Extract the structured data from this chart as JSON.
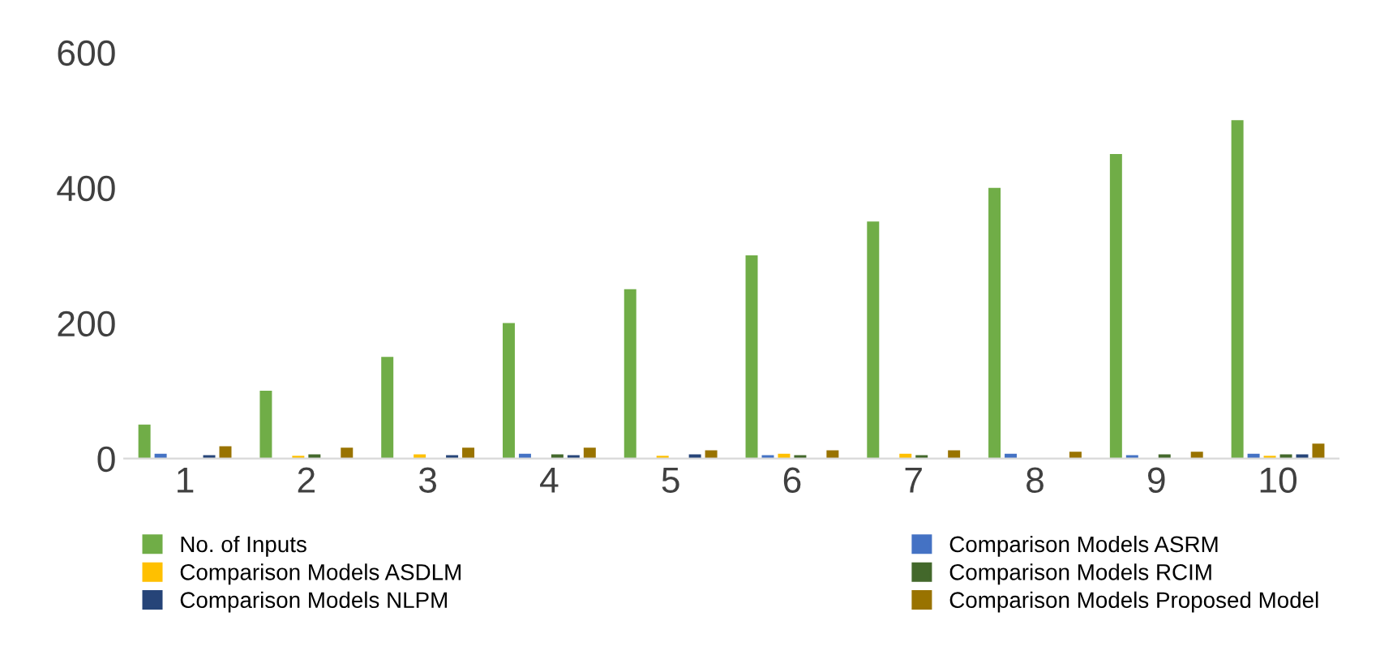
{
  "chart_data": {
    "type": "bar",
    "categories": [
      "1",
      "2",
      "3",
      "4",
      "5",
      "6",
      "7",
      "8",
      "9",
      "10"
    ],
    "series": [
      {
        "name": "No. of Inputs",
        "color": "#70ad47",
        "values": [
          50,
          100,
          150,
          200,
          250,
          300,
          350,
          400,
          450,
          500
        ]
      },
      {
        "name": "Comparison Models ASRM",
        "color": "#4472c4",
        "values": [
          7,
          0,
          0,
          7,
          0,
          5,
          0,
          7,
          5,
          7
        ]
      },
      {
        "name": "Comparison Models ASDLM",
        "color": "#ffc000",
        "values": [
          0,
          4,
          6,
          0,
          4,
          7,
          7,
          0,
          0,
          4
        ]
      },
      {
        "name": "Comparison Models RCIM",
        "color": "#43682b",
        "values": [
          0,
          6,
          0,
          6,
          0,
          5,
          5,
          0,
          6,
          6
        ]
      },
      {
        "name": "Comparison Models NLPM",
        "color": "#264478",
        "values": [
          5,
          0,
          5,
          5,
          6,
          0,
          0,
          0,
          0,
          6
        ]
      },
      {
        "name": "Comparison Models Proposed Model",
        "color": "#997300",
        "values": [
          18,
          16,
          16,
          16,
          12,
          12,
          12,
          10,
          10,
          22
        ]
      }
    ],
    "ylim": [
      0,
      600
    ],
    "yticks": [
      0,
      200,
      400,
      600
    ],
    "grid": false,
    "legend": "bottom"
  }
}
